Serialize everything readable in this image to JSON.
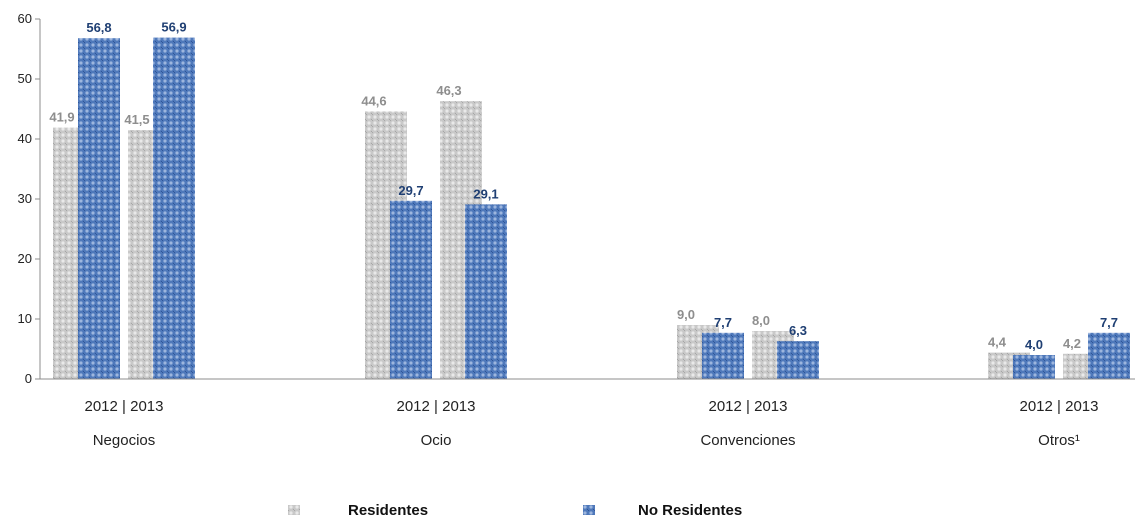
{
  "chart_data": {
    "type": "bar",
    "ylim": [
      0,
      60
    ],
    "yticks": [
      "0",
      "10",
      "20",
      "30",
      "40",
      "50",
      "60"
    ],
    "categories": [
      "Negocios",
      "Ocio",
      "Convenciones",
      "Otros¹"
    ],
    "year_label": "2012  |  2013",
    "series": [
      {
        "name": "Residentes",
        "color": "#b9b9b9",
        "label_color": "#8e8e8e",
        "values_2012": [
          41.9,
          44.6,
          9.0,
          4.4
        ],
        "values_2013": [
          41.5,
          46.3,
          8.0,
          4.2
        ],
        "labels_2012": [
          "41,9",
          "44,6",
          "9,0",
          "4,4"
        ],
        "labels_2013": [
          "41,5",
          "46,3",
          "8,0",
          "4,2"
        ]
      },
      {
        "name": "No Residentes",
        "color": "#4a73b2",
        "label_color": "#1f3f73",
        "values_2012": [
          56.8,
          29.7,
          7.7,
          4.0
        ],
        "values_2013": [
          56.9,
          29.1,
          6.3,
          7.7
        ],
        "labels_2012": [
          "56,8",
          "29,7",
          "7,7",
          "4,0"
        ],
        "labels_2013": [
          "56,9",
          "29,1",
          "6,3",
          "7,7"
        ]
      }
    ],
    "legend": [
      "Residentes",
      "No Residentes"
    ],
    "grid": false,
    "legend_position": "bottom"
  }
}
